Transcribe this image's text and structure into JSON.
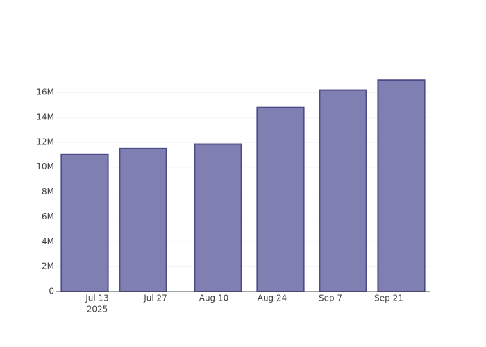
{
  "chart_data": {
    "type": "bar",
    "x": [
      "2025-07-10",
      "2025-07-24",
      "2025-08-11",
      "2025-08-26",
      "2025-09-10",
      "2025-09-24"
    ],
    "values": [
      11000000,
      11500000,
      11850000,
      14800000,
      16200000,
      17000000
    ],
    "color": "#7f7fb2",
    "edge_color": "#4b4b88",
    "xlim": [
      "2025-07-03",
      "2025-10-01"
    ],
    "xticks": [
      {
        "value": "2025-07-13",
        "label": "Jul 13"
      },
      {
        "value": "2025-07-27",
        "label": "Jul 27"
      },
      {
        "value": "2025-08-10",
        "label": "Aug 10"
      },
      {
        "value": "2025-08-24",
        "label": "Aug 24"
      },
      {
        "value": "2025-09-07",
        "label": "Sep 7"
      },
      {
        "value": "2025-09-21",
        "label": "Sep 21"
      }
    ],
    "xtick_year": "2025",
    "ylim": [
      0,
      17850000
    ],
    "yticks": [
      0,
      {
        "value": 2000000,
        "label": "2M"
      },
      {
        "value": 4000000,
        "label": "4M"
      },
      {
        "value": 6000000,
        "label": "6M"
      },
      {
        "value": 8000000,
        "label": "8M"
      },
      {
        "value": 10000000,
        "label": "10M"
      },
      {
        "value": 12000000,
        "label": "12M"
      },
      {
        "value": 14000000,
        "label": "14M"
      },
      {
        "value": 16000000,
        "label": "16M"
      }
    ],
    "grid": true
  }
}
